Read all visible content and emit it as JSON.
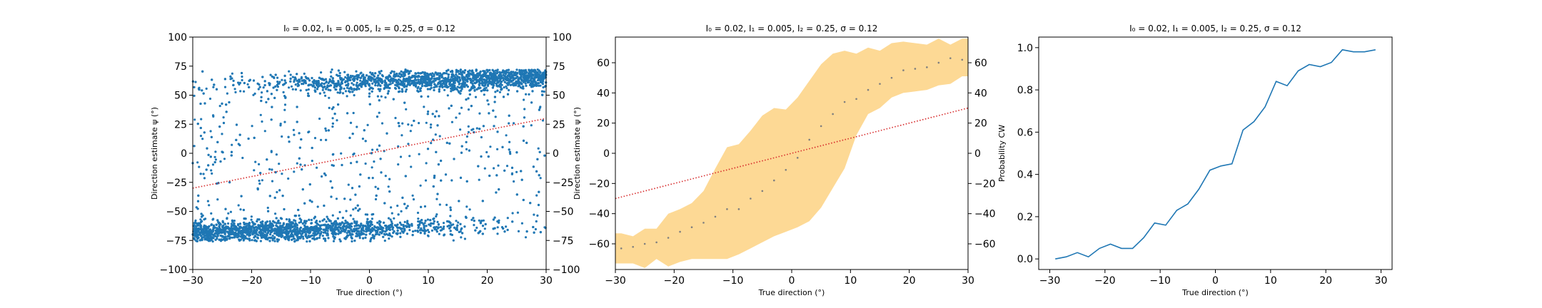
{
  "chart_data": [
    {
      "type": "scatter",
      "title": "I₀ = 0.02, I₁ = 0.005, I₂ = 0.25, σ = 0.12",
      "xlabel": "True direction (°)",
      "ylabel": "Direction estimate ψ (°)",
      "xlim": [
        -30,
        30
      ],
      "ylim": [
        -100,
        100
      ],
      "xticks": [
        -30,
        -20,
        -10,
        0,
        10,
        20,
        30
      ],
      "yticks": [
        -100,
        -75,
        -50,
        -25,
        0,
        25,
        50,
        75,
        100
      ],
      "right_axis_ticks": true,
      "grid": false,
      "colors": {
        "points": "#1f77b4",
        "reference_line": "#d62728"
      },
      "reference_line": {
        "x": [
          -30,
          30
        ],
        "y": [
          -30,
          30
        ],
        "style": "dotted"
      },
      "point_cloud": {
        "description_of_density": "bimodal estimates: dense band near -65 for negative directions and near +62 for positive directions",
        "lower_band_center": -65,
        "upper_band_center": 62,
        "band_halfwidth": 8,
        "transition_center_x": 0,
        "transition_scale": 9
      }
    },
    {
      "type": "line",
      "title": "I₀ = 0.02, I₁ = 0.005, I₂ = 0.25, σ = 0.12",
      "xlabel": "True direction (°)",
      "ylabel": "Direction estimate ψ (°)",
      "xlim": [
        -30,
        30
      ],
      "ylim": [
        -77,
        77
      ],
      "xticks": [
        -30,
        -20,
        -10,
        0,
        10,
        20,
        30
      ],
      "yticks": [
        -60,
        -40,
        -20,
        0,
        20,
        40,
        60
      ],
      "right_axis_ticks": true,
      "grid": false,
      "colors": {
        "band": "#fdd995",
        "mean_points": "#7f7f7f",
        "reference_line": "#d62728"
      },
      "x": [
        -29,
        -27,
        -25,
        -23,
        -21,
        -19,
        -17,
        -15,
        -13,
        -11,
        -9,
        -7,
        -5,
        -3,
        -1,
        1,
        3,
        5,
        7,
        9,
        11,
        13,
        15,
        17,
        19,
        21,
        23,
        25,
        27,
        29
      ],
      "mean": [
        -63,
        -62,
        -60,
        -59,
        -56,
        -52,
        -49,
        -46,
        -42,
        -37,
        -37,
        -30,
        -25,
        -18,
        -11,
        -3,
        9,
        18,
        26,
        34,
        36,
        42,
        46,
        50,
        55,
        56,
        57,
        60,
        63,
        62
      ],
      "upper": [
        -53,
        -55,
        -50,
        -50,
        -40,
        -37,
        -33,
        -25,
        -10,
        4,
        6,
        15,
        25,
        30,
        29,
        37,
        48,
        59,
        66,
        68,
        66,
        70,
        68,
        73,
        74,
        73,
        72,
        76,
        72,
        76
      ],
      "lower": [
        -73,
        -73,
        -76,
        -70,
        -75,
        -72,
        -70,
        -70,
        -70,
        -70,
        -67,
        -63,
        -59,
        -55,
        -52,
        -49,
        -45,
        -36,
        -23,
        -10,
        12,
        26,
        30,
        37,
        40,
        41,
        42,
        45,
        46,
        51
      ],
      "reference_line": {
        "x": [
          -30,
          30
        ],
        "y": [
          -30,
          30
        ],
        "style": "dotted"
      }
    },
    {
      "type": "line",
      "title": "I₀ = 0.02, I₁ = 0.005, I₂ = 0.25, σ = 0.12",
      "xlabel": "True direction (°)",
      "ylabel": "Probability CW",
      "xlim": [
        -32,
        32
      ],
      "ylim": [
        -0.05,
        1.05
      ],
      "xticks": [
        -30,
        -20,
        -10,
        0,
        10,
        20,
        30
      ],
      "yticks": [
        0.0,
        0.2,
        0.4,
        0.6,
        0.8,
        1.0
      ],
      "ytick_labels": [
        "0.0",
        "0.2",
        "0.4",
        "0.6",
        "0.8",
        "1.0"
      ],
      "grid": false,
      "colors": {
        "line": "#1f77b4"
      },
      "x": [
        -29,
        -27,
        -25,
        -23,
        -21,
        -19,
        -17,
        -15,
        -13,
        -11,
        -9,
        -7,
        -5,
        -3,
        -1,
        1,
        3,
        5,
        7,
        9,
        11,
        13,
        15,
        17,
        19,
        21,
        23,
        25,
        27,
        29
      ],
      "values": [
        0.0,
        0.01,
        0.03,
        0.01,
        0.05,
        0.07,
        0.05,
        0.05,
        0.1,
        0.17,
        0.16,
        0.23,
        0.26,
        0.33,
        0.42,
        0.44,
        0.45,
        0.61,
        0.65,
        0.72,
        0.84,
        0.82,
        0.89,
        0.92,
        0.91,
        0.93,
        0.99,
        0.98,
        0.98,
        0.99
      ]
    }
  ]
}
